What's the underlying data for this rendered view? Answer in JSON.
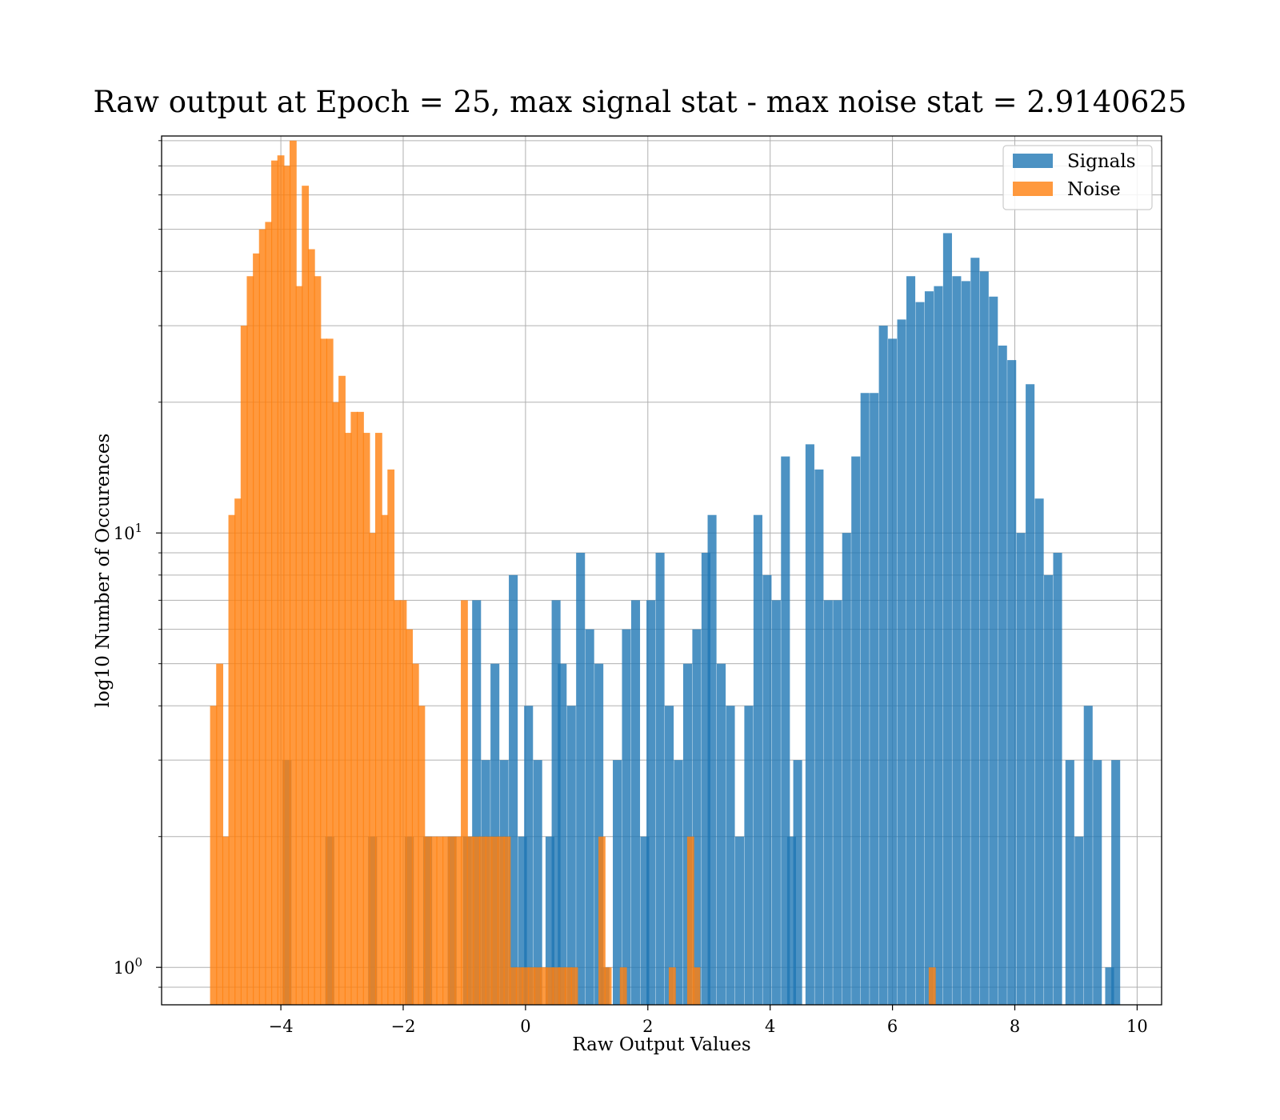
{
  "chart_data": {
    "type": "bar",
    "subtype": "histogram",
    "title": "Raw output at Epoch = 25, max signal stat - max noise stat = 2.9140625",
    "xlabel": "Raw Output Values",
    "ylabel": "log10 Number of Occurences",
    "xlim": [
      -5.95,
      10.4
    ],
    "ylim": [
      0.82,
      82
    ],
    "yscale": "log",
    "grid": true,
    "legend_placement": "top-right",
    "x_ticks": [
      {
        "value": -4,
        "label": "−4"
      },
      {
        "value": -2,
        "label": "−2"
      },
      {
        "value": 0,
        "label": "0"
      },
      {
        "value": 2,
        "label": "2"
      },
      {
        "value": 4,
        "label": "4"
      },
      {
        "value": 6,
        "label": "6"
      },
      {
        "value": 8,
        "label": "8"
      },
      {
        "value": 10,
        "label": "10"
      }
    ],
    "y_ticks": [
      {
        "value": 1,
        "base": "10",
        "exp": "0"
      },
      {
        "value": 10,
        "base": "10",
        "exp": "1"
      }
    ],
    "series": [
      {
        "name": "Signals",
        "color": "#1f77b4",
        "opacity": 0.8,
        "bin_width": 0.145,
        "bins": [
          [
            -3.9,
            3
          ],
          [
            -3.2,
            2
          ],
          [
            -2.5,
            2
          ],
          [
            -1.9,
            2
          ],
          [
            -1.6,
            2
          ],
          [
            -1.2,
            2
          ],
          [
            -0.95,
            2
          ],
          [
            -0.8,
            7
          ],
          [
            -0.65,
            3
          ],
          [
            -0.5,
            5
          ],
          [
            -0.35,
            3
          ],
          [
            -0.2,
            8
          ],
          [
            -0.05,
            2
          ],
          [
            0.05,
            4
          ],
          [
            0.2,
            3
          ],
          [
            0.4,
            2
          ],
          [
            0.5,
            7
          ],
          [
            0.6,
            5
          ],
          [
            0.75,
            4
          ],
          [
            0.9,
            9
          ],
          [
            1.05,
            6
          ],
          [
            1.2,
            5
          ],
          [
            1.3,
            1
          ],
          [
            1.5,
            3
          ],
          [
            1.65,
            6
          ],
          [
            1.8,
            7
          ],
          [
            1.95,
            2
          ],
          [
            2.05,
            7
          ],
          [
            2.2,
            9
          ],
          [
            2.35,
            4
          ],
          [
            2.5,
            3
          ],
          [
            2.65,
            5
          ],
          [
            2.8,
            6
          ],
          [
            2.95,
            9
          ],
          [
            3.05,
            11
          ],
          [
            3.2,
            5
          ],
          [
            3.35,
            4
          ],
          [
            3.5,
            2
          ],
          [
            3.65,
            4
          ],
          [
            3.8,
            11
          ],
          [
            3.95,
            8
          ],
          [
            4.1,
            7
          ],
          [
            4.25,
            15
          ],
          [
            4.35,
            2
          ],
          [
            4.45,
            3
          ],
          [
            4.65,
            16
          ],
          [
            4.8,
            14
          ],
          [
            4.95,
            7
          ],
          [
            5.1,
            7
          ],
          [
            5.25,
            10
          ],
          [
            5.4,
            15
          ],
          [
            5.55,
            21
          ],
          [
            5.7,
            21
          ],
          [
            5.85,
            30
          ],
          [
            6.0,
            28
          ],
          [
            6.15,
            31
          ],
          [
            6.3,
            39
          ],
          [
            6.45,
            34
          ],
          [
            6.6,
            36
          ],
          [
            6.75,
            37
          ],
          [
            6.9,
            49
          ],
          [
            7.05,
            39
          ],
          [
            7.2,
            38
          ],
          [
            7.35,
            43
          ],
          [
            7.5,
            40
          ],
          [
            7.65,
            35
          ],
          [
            7.8,
            27
          ],
          [
            7.95,
            25
          ],
          [
            8.1,
            10
          ],
          [
            8.25,
            22
          ],
          [
            8.4,
            12
          ],
          [
            8.55,
            8
          ],
          [
            8.7,
            9
          ],
          [
            8.9,
            3
          ],
          [
            9.05,
            2
          ],
          [
            9.2,
            4
          ],
          [
            9.35,
            3
          ],
          [
            9.55,
            1
          ],
          [
            9.65,
            3
          ]
        ]
      },
      {
        "name": "Noise",
        "color": "#ff7f0e",
        "opacity": 0.8,
        "bin_width": 0.115,
        "bins": [
          [
            -5.1,
            4
          ],
          [
            -5.0,
            5
          ],
          [
            -4.9,
            2
          ],
          [
            -4.8,
            11
          ],
          [
            -4.7,
            12
          ],
          [
            -4.6,
            30
          ],
          [
            -4.5,
            39
          ],
          [
            -4.4,
            44
          ],
          [
            -4.3,
            50
          ],
          [
            -4.2,
            52
          ],
          [
            -4.1,
            72
          ],
          [
            -4.0,
            74
          ],
          [
            -3.9,
            70
          ],
          [
            -3.8,
            80
          ],
          [
            -3.7,
            37
          ],
          [
            -3.6,
            63
          ],
          [
            -3.5,
            45
          ],
          [
            -3.4,
            39
          ],
          [
            -3.3,
            28
          ],
          [
            -3.2,
            28
          ],
          [
            -3.1,
            20
          ],
          [
            -3.0,
            23
          ],
          [
            -2.9,
            17
          ],
          [
            -2.8,
            19
          ],
          [
            -2.7,
            19
          ],
          [
            -2.6,
            17
          ],
          [
            -2.5,
            10
          ],
          [
            -2.4,
            17
          ],
          [
            -2.3,
            11
          ],
          [
            -2.2,
            14
          ],
          [
            -2.1,
            7
          ],
          [
            -2.0,
            7
          ],
          [
            -1.9,
            6
          ],
          [
            -1.8,
            5
          ],
          [
            -1.7,
            4
          ],
          [
            -1.6,
            2
          ],
          [
            -1.5,
            2
          ],
          [
            -1.4,
            2
          ],
          [
            -1.3,
            2
          ],
          [
            -1.2,
            2
          ],
          [
            -1.1,
            2
          ],
          [
            -1.0,
            7
          ],
          [
            -0.9,
            2
          ],
          [
            -0.8,
            2
          ],
          [
            -0.7,
            2
          ],
          [
            -0.6,
            2
          ],
          [
            -0.5,
            2
          ],
          [
            -0.4,
            2
          ],
          [
            -0.3,
            2
          ],
          [
            -0.2,
            1
          ],
          [
            -0.1,
            1
          ],
          [
            0.0,
            1
          ],
          [
            0.1,
            1
          ],
          [
            0.2,
            1
          ],
          [
            0.3,
            1
          ],
          [
            0.4,
            1
          ],
          [
            0.5,
            1
          ],
          [
            0.6,
            1
          ],
          [
            0.7,
            1
          ],
          [
            0.8,
            1
          ],
          [
            1.25,
            2
          ],
          [
            1.35,
            1
          ],
          [
            1.6,
            1
          ],
          [
            2.4,
            1
          ],
          [
            2.7,
            2
          ],
          [
            2.8,
            1
          ],
          [
            6.65,
            1
          ]
        ]
      }
    ]
  }
}
